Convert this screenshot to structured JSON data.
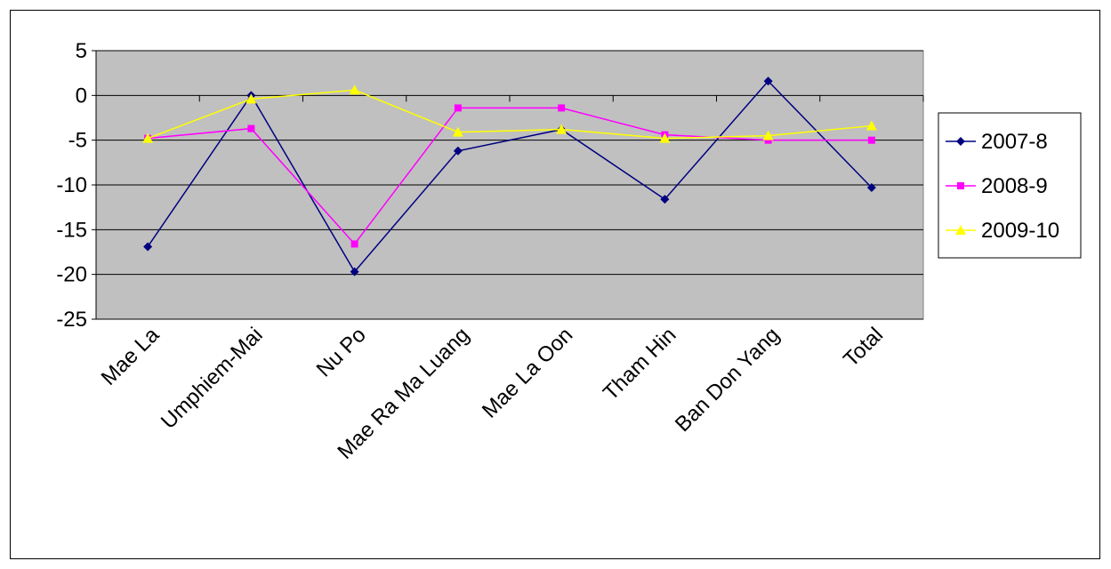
{
  "chart_data": {
    "type": "line",
    "categories": [
      "Mae La",
      "Umphiem-Mai",
      "Nu Po",
      "Mae Ra Ma Luang",
      "Mae La Oon",
      "Tham Hin",
      "Ban Don Yang",
      "Total"
    ],
    "ylim": [
      -25,
      5
    ],
    "yticks": [
      5,
      0,
      -5,
      -10,
      -15,
      -20,
      -25
    ],
    "grid": true,
    "legend_position": "right",
    "plot_background": "#C0C0C0",
    "series": [
      {
        "name": "2007-8",
        "color": "#000080",
        "marker": "diamond",
        "values": [
          -16.9,
          0.0,
          -19.7,
          -6.2,
          -3.8,
          -11.6,
          1.6,
          -10.3
        ]
      },
      {
        "name": "2008-9",
        "color": "#FF00FF",
        "marker": "square",
        "values": [
          -4.8,
          -3.7,
          -16.6,
          -1.4,
          -1.4,
          -4.4,
          -5.0,
          -5.0
        ]
      },
      {
        "name": "2009-10",
        "color": "#FFFF00",
        "marker": "triangle",
        "values": [
          -4.8,
          -0.4,
          0.6,
          -4.1,
          -3.8,
          -4.8,
          -4.5,
          -3.4
        ]
      }
    ]
  }
}
